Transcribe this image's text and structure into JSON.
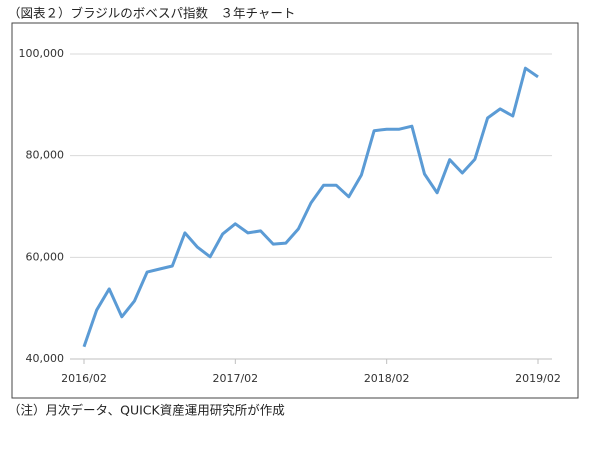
{
  "chart_data": {
    "type": "line",
    "title": "（図表２）ブラジルのボベスパ指数　３年チャート",
    "note": "（注）月次データ、QUICK資産運用研究所が作成",
    "categories": [
      "2016/02",
      null,
      null,
      null,
      null,
      null,
      null,
      null,
      null,
      null,
      null,
      null,
      "2017/02",
      null,
      null,
      null,
      null,
      null,
      null,
      null,
      null,
      null,
      null,
      null,
      "2018/02",
      null,
      null,
      null,
      null,
      null,
      null,
      null,
      null,
      null,
      null,
      null,
      "2019/02"
    ],
    "values": [
      42400,
      49600,
      53800,
      48300,
      51400,
      57100,
      57700,
      58300,
      64800,
      62000,
      60100,
      64600,
      66600,
      64800,
      65200,
      62600,
      62800,
      65600,
      70700,
      74200,
      74200,
      71900,
      76200,
      84900,
      85200,
      85200,
      85800,
      76400,
      72700,
      79200,
      76600,
      79300,
      87400,
      89200,
      87800,
      97200,
      95500
    ],
    "color": "#5b9bd5",
    "ylim": [
      40000,
      100000
    ],
    "yticks": [
      {
        "value": 40000,
        "label": "40,000"
      },
      {
        "value": 60000,
        "label": "60,000"
      },
      {
        "value": 80000,
        "label": "80,000"
      },
      {
        "value": 100000,
        "label": "100,000"
      }
    ],
    "grid": true
  }
}
